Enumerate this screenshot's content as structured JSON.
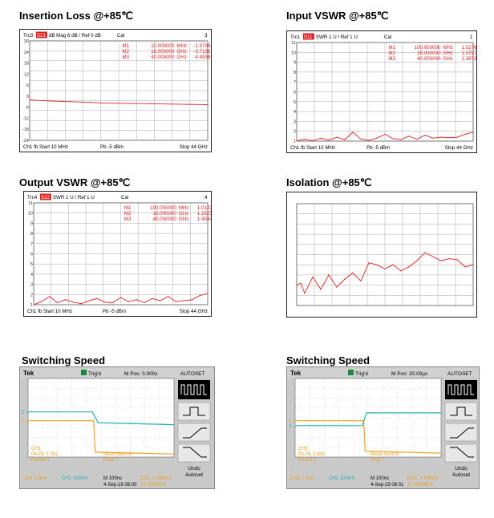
{
  "panels": [
    {
      "title": "Insertion Loss @+85℃",
      "header": {
        "trc": "Trc3",
        "meas": "S21",
        "fmt": "dB Mag",
        "scale": "6 dB /",
        "ref": "Ref 0 dB",
        "cal": "Cal",
        "num": "3"
      },
      "footer": {
        "ch": "Ch1",
        "fb": "fb",
        "start": "Start 10 MHz",
        "pb": "Pb -5 dBm",
        "stop": "Stop 44 GHz"
      },
      "markers": [
        {
          "name": "M1",
          "freq": "10.000000",
          "unit": "MHz",
          "val": "-1.9794",
          "vunit": "dB"
        },
        {
          "name": "M2",
          "freq": "18.000000",
          "unit": "GHz",
          "val": "-3.7138",
          "vunit": "dB"
        },
        {
          "name": "M3",
          "freq": "40.000000",
          "unit": "GHz",
          "val": "-4.4838",
          "vunit": "dB"
        }
      ]
    },
    {
      "title": "Input VSWR @+85℃",
      "header": {
        "trc": "Trc1",
        "meas": "S11",
        "fmt": "SWR",
        "scale": "1 U /",
        "ref": "Ref 1 U",
        "cal": "Cal",
        "num": "1"
      },
      "footer": {
        "ch": "Ch1",
        "fb": "fb",
        "start": "Start 10 MHz",
        "pb": "Pb -5 dBm",
        "stop": "Stop 44 GHz"
      },
      "markers": [
        {
          "name": "M1",
          "freq": "100.000000",
          "unit": "MHz",
          "val": "1.0276",
          "vunit": "U"
        },
        {
          "name": "M2",
          "freq": "18.000000",
          "unit": "GHz",
          "val": "1.0797",
          "vunit": "U"
        },
        {
          "name": "M3",
          "freq": "40.000000",
          "unit": "GHz",
          "val": "1.3873",
          "vunit": "U"
        }
      ]
    },
    {
      "title": "Output VSWR @+85℃",
      "header": {
        "trc": "Trc4",
        "meas": "S22",
        "fmt": "SWR",
        "scale": "1 U /",
        "ref": "Ref 1 U",
        "cal": "Cal",
        "num": "4"
      },
      "footer": {
        "ch": "Ch1",
        "fb": "fb",
        "start": "Start 10 MHz",
        "pb": "Pb -5 dBm",
        "stop": "Stop 44 GHz"
      },
      "markers": [
        {
          "name": "M1",
          "freq": "100.000000",
          "unit": "MHz",
          "val": "1.0123",
          "vunit": "U"
        },
        {
          "name": "M2",
          "freq": "18.000000",
          "unit": "GHz",
          "val": "1.2525",
          "vunit": "U"
        },
        {
          "name": "M3",
          "freq": "40.000000",
          "unit": "GHz",
          "val": "1.4944",
          "vunit": "U"
        }
      ]
    },
    {
      "title": "Isolation @+85℃"
    },
    {
      "title": "Switching Speed",
      "scope": {
        "brand": "Tek",
        "trig": "Trig'd",
        "mpos": "M Pos: 0.000s",
        "autoset": "AUTOSET",
        "ch1": "CH1",
        "pkpk": "Pk-Pk 3.76V",
        "period": "Period ?",
        "mean": "Mean 992mV",
        "freq": "Freq ?",
        "ch1scale": "CH1  2.00V",
        "ch2scale": "CH2  100mV",
        "timebase": "M 100ns",
        "date": "4-Sep-19 08:00",
        "trigsrc": "CH1 ↗  966mV",
        "trigfreq": "10.0000kHz",
        "undo": "Undo",
        "undo2": "Autoset",
        "ch2tag": "2→",
        "ch1tag": "1→"
      }
    },
    {
      "title": "Switching Speed",
      "scope": {
        "brand": "Tek",
        "trig": "Trig'd",
        "mpos": "M Pos: 20.00µs",
        "autoset": "AUTOSET",
        "ch1": "CH1",
        "pkpk": "Pk-Pk 3.88V",
        "period": "Period ?",
        "mean": "Mean 953mV",
        "freq": "Freq ?",
        "ch1scale": "CH1  2.00V",
        "ch2scale": "CH2  100mV",
        "timebase": "M 100ns",
        "date": "4-Sep-19 08:01",
        "trigsrc": "CH1 ↗  966mV",
        "trigfreq": "10.0000kHz",
        "undo": "Undo",
        "undo2": "Autoset",
        "ch2tag": "2→",
        "ch1tag": "1→"
      }
    }
  ],
  "colors": {
    "trace": "#e02020",
    "grid": "#a8a8a8",
    "ch1": "#f0a020",
    "ch2": "#20b0b0",
    "scopeScreen": "#ffffff"
  },
  "chart_data": [
    {
      "type": "line",
      "title": "Insertion Loss @+85℃",
      "xlabel": "",
      "ylabel": "",
      "x_range_ghz": [
        0.01,
        44
      ],
      "ylim": [
        -24,
        30
      ],
      "yticks": [
        "30",
        "24",
        "18",
        "12",
        "6",
        "0",
        "-6",
        "-12",
        "-18",
        "-24"
      ],
      "series": [
        {
          "x": [
            0.01,
            2,
            5,
            10,
            15,
            18,
            22,
            26,
            30,
            35,
            40,
            44
          ],
          "y": [
            -2.0,
            -2.3,
            -2.6,
            -3.0,
            -3.4,
            -3.7,
            -3.9,
            -4.0,
            -4.1,
            -4.3,
            -4.5,
            -4.6
          ]
        }
      ]
    },
    {
      "type": "line",
      "title": "Input VSWR @+85℃",
      "xlabel": "",
      "ylabel": "",
      "x_range_ghz": [
        0.01,
        44
      ],
      "ylim": [
        1,
        11
      ],
      "yticks": [
        "11",
        "10",
        "9",
        "8",
        "7",
        "6",
        "5",
        "4",
        "3",
        "2",
        "1"
      ],
      "series": [
        {
          "x": [
            0.01,
            2,
            4,
            6,
            8,
            10,
            12,
            14,
            16,
            18,
            20,
            22,
            24,
            26,
            28,
            30,
            32,
            34,
            36,
            38,
            40,
            42,
            44
          ],
          "y": [
            1.02,
            1.2,
            1.05,
            1.3,
            1.1,
            1.4,
            1.15,
            1.9,
            1.2,
            1.08,
            1.3,
            1.7,
            1.25,
            1.15,
            1.5,
            1.2,
            1.6,
            1.3,
            1.4,
            1.35,
            1.39,
            1.7,
            1.9
          ]
        }
      ]
    },
    {
      "type": "line",
      "title": "Output VSWR @+85℃",
      "xlabel": "",
      "ylabel": "",
      "x_range_ghz": [
        0.01,
        44
      ],
      "ylim": [
        1,
        11
      ],
      "yticks": [
        "11",
        "10",
        "9",
        "8",
        "7",
        "6",
        "5",
        "4",
        "3",
        "2",
        "1"
      ],
      "series": [
        {
          "x": [
            0.01,
            2,
            4,
            6,
            8,
            10,
            12,
            14,
            16,
            18,
            20,
            22,
            24,
            26,
            28,
            30,
            32,
            34,
            36,
            38,
            40,
            42,
            44
          ],
          "y": [
            1.01,
            1.3,
            1.8,
            1.2,
            1.5,
            1.25,
            1.1,
            1.4,
            1.6,
            1.25,
            1.2,
            1.7,
            1.3,
            1.5,
            1.2,
            1.6,
            1.4,
            1.8,
            1.3,
            1.4,
            1.49,
            1.9,
            2.1
          ]
        }
      ]
    },
    {
      "type": "line",
      "title": "Isolation @+85℃",
      "xlabel": "",
      "ylabel": "",
      "x_range_ghz": [
        0.01,
        44
      ],
      "ylim": [
        -100,
        0
      ],
      "series": [
        {
          "x": [
            0.01,
            1,
            2,
            4,
            6,
            8,
            10,
            12,
            14,
            16,
            18,
            20,
            22,
            24,
            26,
            28,
            30,
            32,
            34,
            36,
            38,
            40,
            42,
            44
          ],
          "y": [
            -80,
            -78,
            -88,
            -72,
            -84,
            -70,
            -82,
            -74,
            -68,
            -76,
            -58,
            -60,
            -64,
            -60,
            -66,
            -62,
            -56,
            -48,
            -52,
            -56,
            -54,
            -55,
            -62,
            -60
          ]
        }
      ]
    },
    {
      "type": "line",
      "title": "Switching Speed",
      "xlabel": "",
      "ylabel": "",
      "x_divs": [
        0,
        10
      ],
      "series": [
        {
          "name": "CH1",
          "x": [
            0,
            4.5,
            4.6,
            10
          ],
          "y": [
            3.7,
            3.7,
            0.5,
            0.3
          ]
        },
        {
          "name": "CH2",
          "x": [
            0,
            4.4,
            4.8,
            10
          ],
          "y": [
            4.6,
            4.6,
            3.5,
            3.3
          ]
        }
      ]
    },
    {
      "type": "line",
      "title": "Switching Speed",
      "xlabel": "",
      "ylabel": "",
      "x_divs": [
        0,
        10
      ],
      "series": [
        {
          "name": "CH1",
          "x": [
            0,
            4.7,
            4.8,
            10
          ],
          "y": [
            3.7,
            3.7,
            0.6,
            0.4
          ]
        },
        {
          "name": "CH2",
          "x": [
            0,
            4.6,
            4.9,
            10
          ],
          "y": [
            3.2,
            3.2,
            4.5,
            4.5
          ]
        }
      ]
    }
  ]
}
